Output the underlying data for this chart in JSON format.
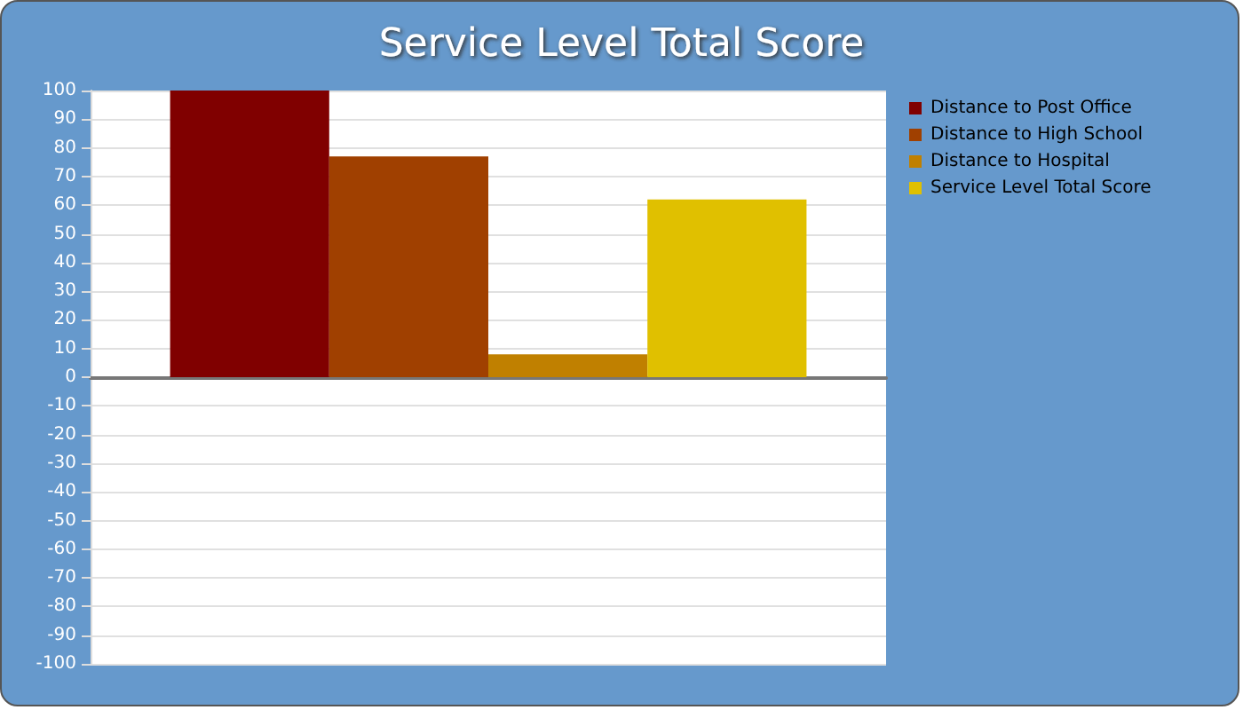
{
  "chart_data": {
    "type": "bar",
    "title": "Service Level Total Score",
    "categories": [
      null
    ],
    "series": [
      {
        "name": "Distance to Post Office",
        "color": "#800000",
        "values": [
          100
        ]
      },
      {
        "name": "Distance to High School",
        "color": "#a04000",
        "values": [
          77
        ]
      },
      {
        "name": "Distance to Hospital",
        "color": "#c08000",
        "values": [
          8
        ]
      },
      {
        "name": "Service Level Total Score",
        "color": "#e0c000",
        "values": [
          62
        ]
      }
    ],
    "ylim": [
      -100,
      100
    ],
    "yticks": [
      -100,
      -90,
      -80,
      -70,
      -60,
      -50,
      -40,
      -30,
      -20,
      -10,
      0,
      10,
      20,
      30,
      40,
      50,
      60,
      70,
      80,
      90,
      100
    ],
    "grid": "y",
    "legend": "top right"
  }
}
